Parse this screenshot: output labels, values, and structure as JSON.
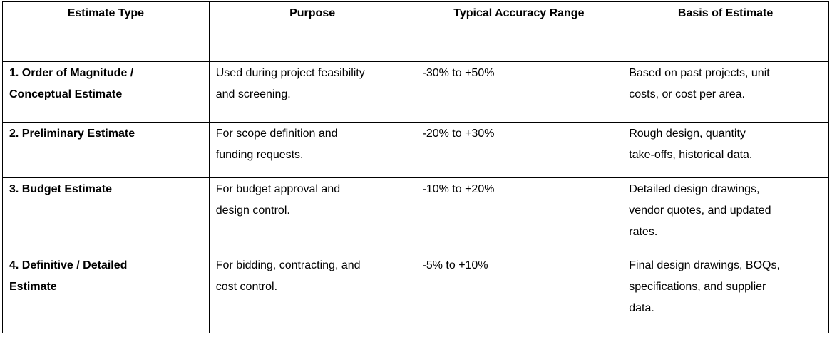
{
  "colors": {
    "background": "#ffffff",
    "border": "#000000",
    "text": "#000000"
  },
  "table": {
    "headers": {
      "estimate_type": "Estimate Type",
      "purpose": "Purpose",
      "accuracy": "Typical Accuracy Range",
      "basis": "Basis of Estimate"
    },
    "rows": [
      {
        "estimate_type": [
          "1. Order of Magnitude /",
          "Conceptual Estimate"
        ],
        "purpose": [
          "Used during project feasibility",
          "and screening."
        ],
        "accuracy": "-30% to +50%",
        "basis": [
          "Based on past projects, unit",
          "costs, or cost per area."
        ]
      },
      {
        "estimate_type": [
          "2. Preliminary Estimate"
        ],
        "purpose": [
          "For scope definition and",
          "funding requests."
        ],
        "accuracy": "-20% to +30%",
        "basis": [
          "Rough design, quantity",
          "take-offs, historical data."
        ]
      },
      {
        "estimate_type": [
          "3. Budget Estimate"
        ],
        "purpose": [
          "For budget approval and",
          "design control."
        ],
        "accuracy": "-10% to +20%",
        "basis": [
          "Detailed design drawings,",
          "vendor quotes, and updated",
          "rates."
        ]
      },
      {
        "estimate_type": [
          "4. Definitive / Detailed",
          "Estimate"
        ],
        "purpose": [
          "For bidding, contracting, and",
          "cost control."
        ],
        "accuracy": "-5% to +10%",
        "basis": [
          "Final design drawings, BOQs,",
          "specifications, and supplier",
          "data."
        ]
      }
    ]
  }
}
